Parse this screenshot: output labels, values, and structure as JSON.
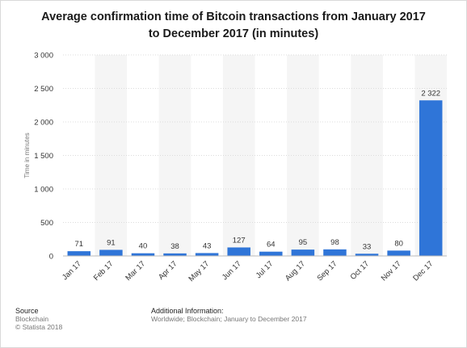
{
  "chart_data": {
    "type": "bar",
    "title": "Average confirmation time of Bitcoin transactions from January 2017 to December 2017 (in minutes)",
    "title_lines": [
      "Average confirmation time of Bitcoin transactions from January 2017",
      "to December 2017 (in minutes)"
    ],
    "ylabel": "Time in minutes",
    "xlabel": "",
    "categories": [
      "Jan 17",
      "Feb 17",
      "Mar 17",
      "Apr 17",
      "May 17",
      "Jun 17",
      "Jul 17",
      "Aug 17",
      "Sep 17",
      "Oct 17",
      "Nov 17",
      "Dec 17"
    ],
    "values": [
      71,
      91,
      40,
      38,
      43,
      127,
      64,
      95,
      98,
      33,
      80,
      2322
    ],
    "value_labels": [
      "71",
      "91",
      "40",
      "38",
      "43",
      "127",
      "64",
      "95",
      "98",
      "33",
      "80",
      "2 322"
    ],
    "ylim": [
      0,
      3000
    ],
    "yticks": [
      0,
      500,
      1000,
      1500,
      2000,
      2500,
      3000
    ],
    "ytick_labels": [
      "0",
      "500",
      "1 000",
      "1 500",
      "2 000",
      "2 500",
      "3 000"
    ],
    "grid": true,
    "bar_color": "#2f75d8"
  },
  "footer": {
    "source_heading": "Source",
    "source_lines": [
      "Blockchain",
      "© Statista 2018"
    ],
    "info_heading": "Additional Information:",
    "info_text": "Worldwide; Blockchain; January to December 2017"
  }
}
